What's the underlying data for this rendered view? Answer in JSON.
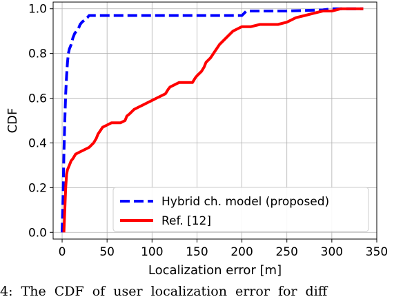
{
  "chart_data": {
    "type": "line",
    "title": "",
    "xlabel": "Localization error [m]",
    "ylabel": "CDF",
    "xlim": [
      -10,
      350
    ],
    "ylim": [
      -0.03,
      1.03
    ],
    "xticks": [
      0,
      50,
      100,
      150,
      200,
      250,
      300,
      350
    ],
    "yticks": [
      0.0,
      0.2,
      0.4,
      0.6,
      0.8,
      1.0
    ],
    "xtick_labels": [
      "0",
      "50",
      "100",
      "150",
      "200",
      "250",
      "300",
      "350"
    ],
    "ytick_labels": [
      "0.0",
      "0.2",
      "0.4",
      "0.6",
      "0.8",
      "1.0"
    ],
    "grid": true,
    "legend_position": "lower-right",
    "series": [
      {
        "name": "Hybrid ch. model (proposed)",
        "color": "#0000ff",
        "style": "dashed",
        "x": [
          0,
          1,
          2,
          3,
          4,
          5,
          6,
          7,
          8,
          10,
          12,
          14,
          16,
          18,
          20,
          22,
          25,
          28,
          30,
          200,
          205,
          250,
          290,
          300,
          335
        ],
        "y": [
          0,
          0.15,
          0.35,
          0.5,
          0.62,
          0.7,
          0.76,
          0.8,
          0.82,
          0.84,
          0.87,
          0.89,
          0.9,
          0.91,
          0.93,
          0.94,
          0.95,
          0.96,
          0.97,
          0.97,
          0.99,
          0.99,
          0.995,
          1.0,
          1.0
        ]
      },
      {
        "name": "Ref. [12]",
        "color": "#ff0000",
        "style": "solid",
        "x": [
          2,
          3,
          4,
          5,
          6,
          8,
          10,
          12,
          15,
          20,
          25,
          30,
          35,
          38,
          40,
          45,
          50,
          55,
          60,
          65,
          70,
          72,
          75,
          80,
          85,
          90,
          95,
          100,
          105,
          110,
          115,
          118,
          120,
          125,
          130,
          135,
          140,
          145,
          148,
          150,
          155,
          158,
          160,
          165,
          170,
          175,
          180,
          185,
          190,
          195,
          200,
          210,
          220,
          230,
          240,
          250,
          260,
          270,
          280,
          290,
          300,
          310,
          320,
          330,
          335
        ],
        "y": [
          0,
          0.1,
          0.2,
          0.26,
          0.28,
          0.3,
          0.32,
          0.33,
          0.35,
          0.36,
          0.37,
          0.38,
          0.4,
          0.42,
          0.44,
          0.47,
          0.48,
          0.49,
          0.49,
          0.49,
          0.5,
          0.52,
          0.53,
          0.55,
          0.56,
          0.57,
          0.58,
          0.59,
          0.6,
          0.61,
          0.62,
          0.64,
          0.65,
          0.66,
          0.67,
          0.67,
          0.67,
          0.67,
          0.69,
          0.7,
          0.72,
          0.74,
          0.76,
          0.78,
          0.81,
          0.84,
          0.86,
          0.88,
          0.9,
          0.91,
          0.92,
          0.92,
          0.93,
          0.93,
          0.93,
          0.94,
          0.96,
          0.97,
          0.98,
          0.99,
          0.99,
          1.0,
          1.0,
          1.0,
          1.0
        ]
      }
    ]
  },
  "caption": "4:  The  CDF  of  user  localization  error  for  diff"
}
